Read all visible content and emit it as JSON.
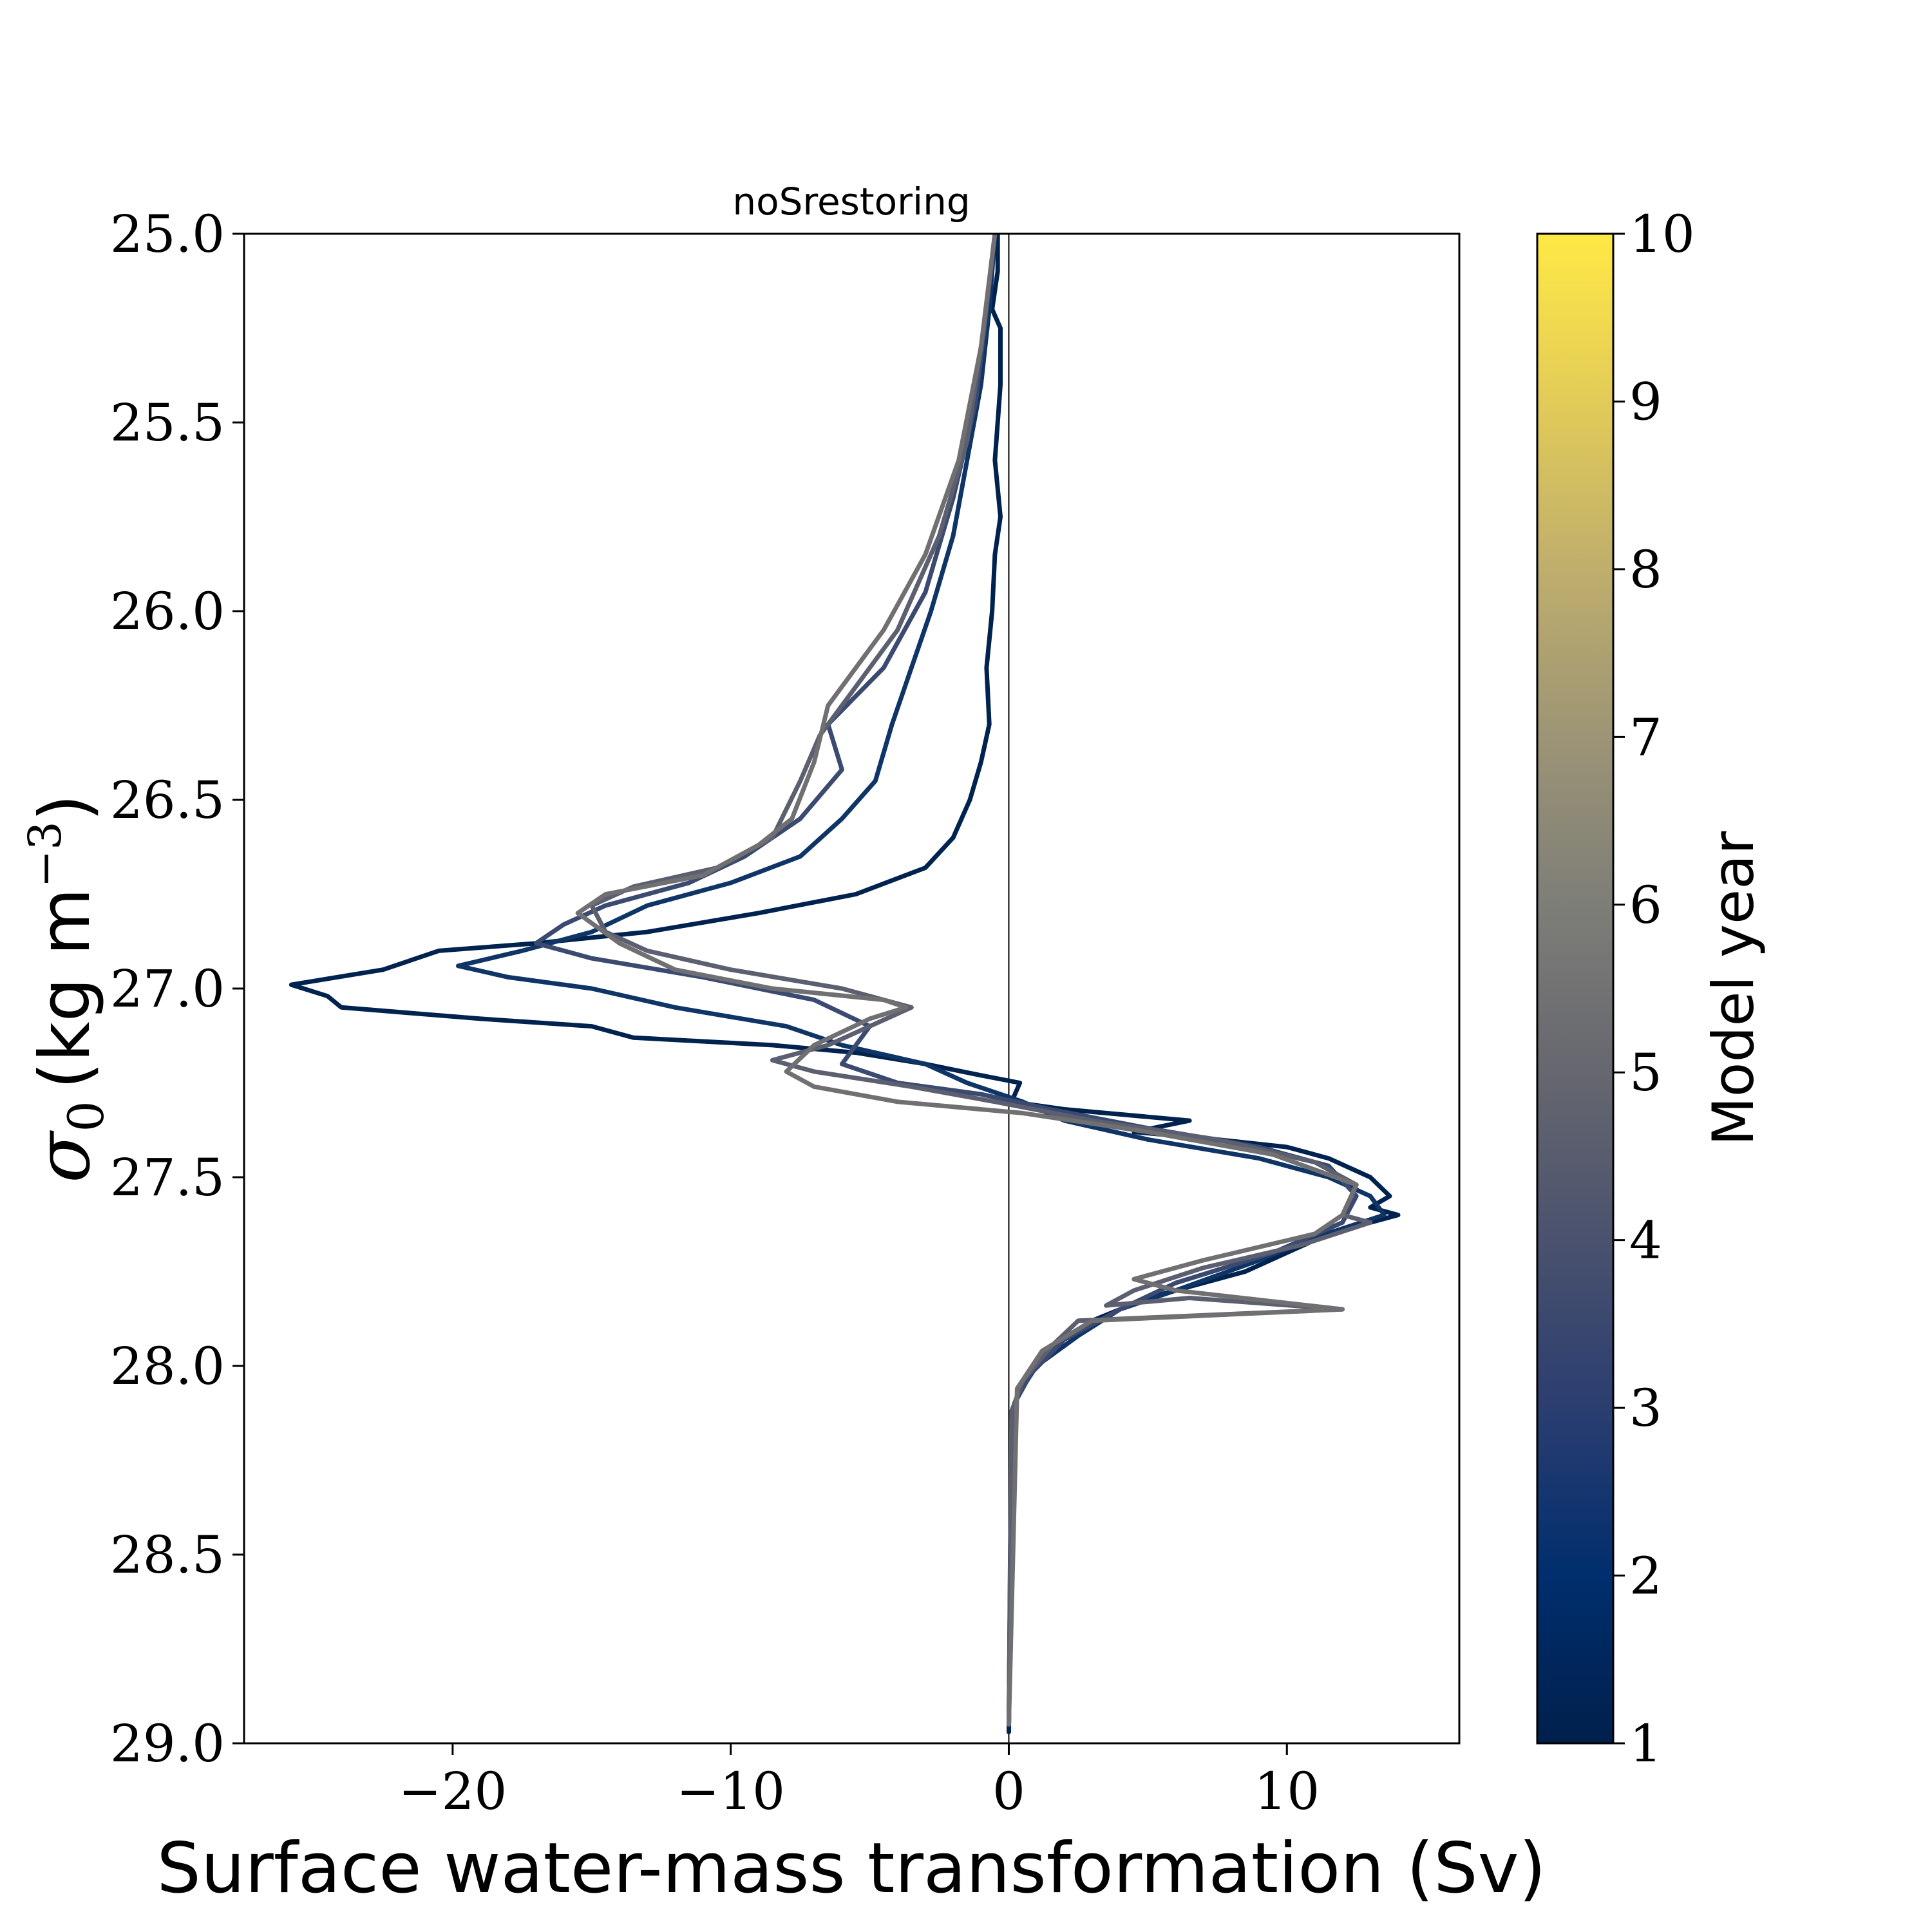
{
  "chart_data": {
    "type": "line",
    "title": "noSrestoring",
    "xlabel": "Surface water-mass transformation (Sv)",
    "ylabel_symbol": "σ",
    "ylabel_subscript": "0",
    "ylabel_units": "(kg m",
    "ylabel_exponent": "−3",
    "ylabel_close": ")",
    "xlim": [
      -27.5,
      16.2
    ],
    "ylim": [
      29.0,
      25.0
    ],
    "y_inverted": true,
    "x_ticks": [
      -20,
      -10,
      0,
      10
    ],
    "x_tick_labels": [
      "−20",
      "−10",
      "0",
      "10"
    ],
    "y_ticks": [
      25.0,
      25.5,
      26.0,
      26.5,
      27.0,
      27.5,
      28.0,
      28.5,
      29.0
    ],
    "y_tick_labels": [
      "25.0",
      "25.5",
      "26.0",
      "26.5",
      "27.0",
      "27.5",
      "28.0",
      "28.5",
      "29.0"
    ],
    "zero_line": true,
    "grid": false,
    "colorbar": {
      "label": "Model year",
      "min": 1,
      "max": 10,
      "ticks": [
        1,
        2,
        3,
        4,
        5,
        6,
        7,
        8,
        9,
        10
      ],
      "tick_labels": [
        "1",
        "2",
        "3",
        "4",
        "5",
        "6",
        "7",
        "8",
        "9",
        "10"
      ],
      "colormap": "cividis",
      "stops": [
        "#00204c",
        "#002e6e",
        "#2b3e70",
        "#4a526e",
        "#66676f",
        "#7e7e78",
        "#9c9475",
        "#bfae6c",
        "#e2cb58",
        "#ffe945"
      ]
    },
    "series": [
      {
        "year": 1,
        "color": "#00224e",
        "points": [
          [
            -0.4,
            25.0
          ],
          [
            -0.4,
            25.1
          ],
          [
            -0.6,
            25.2
          ],
          [
            -0.3,
            25.25
          ],
          [
            -0.3,
            25.4
          ],
          [
            -0.5,
            25.6
          ],
          [
            -0.3,
            25.75
          ],
          [
            -0.5,
            25.85
          ],
          [
            -0.6,
            26.0
          ],
          [
            -0.8,
            26.15
          ],
          [
            -0.7,
            26.3
          ],
          [
            -1.0,
            26.4
          ],
          [
            -1.4,
            26.5
          ],
          [
            -2.0,
            26.6
          ],
          [
            -3.0,
            26.68
          ],
          [
            -5.5,
            26.75
          ],
          [
            -9.0,
            26.8
          ],
          [
            -13.0,
            26.85
          ],
          [
            -17.0,
            26.88
          ],
          [
            -20.5,
            26.9
          ],
          [
            -22.5,
            26.95
          ],
          [
            -25.8,
            26.99
          ],
          [
            -24.5,
            27.02
          ],
          [
            -24.0,
            27.05
          ],
          [
            -19.0,
            27.08
          ],
          [
            -15.0,
            27.1
          ],
          [
            -13.5,
            27.13
          ],
          [
            -8.5,
            27.15
          ],
          [
            -5.5,
            27.17
          ],
          [
            -3.0,
            27.2
          ],
          [
            -1.0,
            27.23
          ],
          [
            0.4,
            27.25
          ],
          [
            0.1,
            27.3
          ],
          [
            2.0,
            27.32
          ],
          [
            6.5,
            27.35
          ],
          [
            4.5,
            27.38
          ],
          [
            7.5,
            27.4
          ],
          [
            10.0,
            27.42
          ],
          [
            11.5,
            27.45
          ],
          [
            13.0,
            27.5
          ],
          [
            13.7,
            27.55
          ],
          [
            13.0,
            27.58
          ],
          [
            14.0,
            27.6
          ],
          [
            11.5,
            27.65
          ],
          [
            10.0,
            27.7
          ],
          [
            8.5,
            27.75
          ],
          [
            5.0,
            27.82
          ],
          [
            3.0,
            27.88
          ],
          [
            1.5,
            27.95
          ],
          [
            0.6,
            28.03
          ],
          [
            0.2,
            28.1
          ],
          [
            0.1,
            28.2
          ],
          [
            0.05,
            28.5
          ],
          [
            0.0,
            28.97
          ]
        ]
      },
      {
        "year": 2,
        "color": "#0f3466",
        "points": [
          [
            -0.5,
            25.0
          ],
          [
            -0.7,
            25.2
          ],
          [
            -1.0,
            25.4
          ],
          [
            -1.5,
            25.6
          ],
          [
            -2.0,
            25.8
          ],
          [
            -2.8,
            26.0
          ],
          [
            -3.5,
            26.15
          ],
          [
            -4.2,
            26.3
          ],
          [
            -4.8,
            26.45
          ],
          [
            -6.0,
            26.55
          ],
          [
            -7.5,
            26.65
          ],
          [
            -10.0,
            26.72
          ],
          [
            -13.0,
            26.78
          ],
          [
            -15.0,
            26.85
          ],
          [
            -17.5,
            26.9
          ],
          [
            -19.8,
            26.94
          ],
          [
            -18.0,
            26.97
          ],
          [
            -15.0,
            27.0
          ],
          [
            -12.0,
            27.05
          ],
          [
            -8.0,
            27.1
          ],
          [
            -6.0,
            27.15
          ],
          [
            -3.0,
            27.2
          ],
          [
            -1.5,
            27.25
          ],
          [
            0.5,
            27.3
          ],
          [
            2.0,
            27.35
          ],
          [
            5.0,
            27.4
          ],
          [
            9.0,
            27.45
          ],
          [
            11.5,
            27.5
          ],
          [
            13.0,
            27.55
          ],
          [
            13.5,
            27.6
          ],
          [
            11.0,
            27.66
          ],
          [
            9.0,
            27.72
          ],
          [
            6.0,
            27.8
          ],
          [
            4.0,
            27.85
          ],
          [
            2.5,
            27.92
          ],
          [
            1.0,
            28.0
          ],
          [
            0.3,
            28.08
          ],
          [
            0.1,
            28.2
          ],
          [
            0.0,
            28.95
          ]
        ]
      },
      {
        "year": 3,
        "color": "#3a4a70",
        "points": [
          [
            -0.5,
            25.0
          ],
          [
            -0.8,
            25.2
          ],
          [
            -1.2,
            25.45
          ],
          [
            -2.0,
            25.7
          ],
          [
            -3.0,
            25.95
          ],
          [
            -4.5,
            26.15
          ],
          [
            -6.5,
            26.3
          ],
          [
            -6.0,
            26.42
          ],
          [
            -7.5,
            26.55
          ],
          [
            -9.5,
            26.65
          ],
          [
            -11.5,
            26.72
          ],
          [
            -14.5,
            26.78
          ],
          [
            -16.0,
            26.83
          ],
          [
            -17.0,
            26.88
          ],
          [
            -15.0,
            26.92
          ],
          [
            -11.0,
            26.97
          ],
          [
            -7.0,
            27.03
          ],
          [
            -5.0,
            27.1
          ],
          [
            -5.5,
            27.15
          ],
          [
            -6.0,
            27.2
          ],
          [
            -4.0,
            27.25
          ],
          [
            -1.0,
            27.28
          ],
          [
            1.5,
            27.32
          ],
          [
            5.0,
            27.37
          ],
          [
            9.0,
            27.42
          ],
          [
            11.5,
            27.47
          ],
          [
            12.5,
            27.55
          ],
          [
            12.0,
            27.62
          ],
          [
            9.5,
            27.7
          ],
          [
            6.0,
            27.78
          ],
          [
            4.0,
            27.85
          ],
          [
            2.0,
            27.93
          ],
          [
            0.8,
            28.02
          ],
          [
            0.2,
            28.1
          ],
          [
            0.0,
            28.95
          ]
        ]
      },
      {
        "year": 4,
        "color": "#5c5f70",
        "points": [
          [
            -0.5,
            25.0
          ],
          [
            -0.9,
            25.25
          ],
          [
            -1.5,
            25.55
          ],
          [
            -2.5,
            25.8
          ],
          [
            -4.0,
            26.05
          ],
          [
            -5.5,
            26.2
          ],
          [
            -6.8,
            26.33
          ],
          [
            -7.5,
            26.45
          ],
          [
            -8.5,
            26.6
          ],
          [
            -10.5,
            26.68
          ],
          [
            -13.5,
            26.73
          ],
          [
            -15.0,
            26.78
          ],
          [
            -14.5,
            26.85
          ],
          [
            -13.0,
            26.9
          ],
          [
            -10.0,
            26.95
          ],
          [
            -6.0,
            27.0
          ],
          [
            -3.5,
            27.05
          ],
          [
            -5.0,
            27.1
          ],
          [
            -6.5,
            27.15
          ],
          [
            -8.5,
            27.19
          ],
          [
            -7.0,
            27.22
          ],
          [
            -3.5,
            27.26
          ],
          [
            -0.5,
            27.3
          ],
          [
            3.0,
            27.35
          ],
          [
            7.5,
            27.4
          ],
          [
            11.0,
            27.46
          ],
          [
            12.5,
            27.52
          ],
          [
            12.0,
            27.6
          ],
          [
            13.0,
            27.62
          ],
          [
            10.5,
            27.68
          ],
          [
            7.0,
            27.74
          ],
          [
            4.5,
            27.8
          ],
          [
            3.5,
            27.84
          ],
          [
            6.5,
            27.82
          ],
          [
            12.0,
            27.85
          ],
          [
            2.5,
            27.88
          ],
          [
            1.5,
            27.95
          ],
          [
            0.5,
            28.04
          ],
          [
            0.1,
            28.12
          ],
          [
            0.0,
            28.95
          ]
        ]
      },
      {
        "year": 5,
        "color": "#707073",
        "points": [
          [
            -0.5,
            25.0
          ],
          [
            -1.0,
            25.3
          ],
          [
            -1.8,
            25.6
          ],
          [
            -3.0,
            25.85
          ],
          [
            -4.5,
            26.05
          ],
          [
            -6.5,
            26.25
          ],
          [
            -7.0,
            26.4
          ],
          [
            -7.8,
            26.55
          ],
          [
            -9.0,
            26.62
          ],
          [
            -11.0,
            26.7
          ],
          [
            -14.5,
            26.75
          ],
          [
            -15.5,
            26.8
          ],
          [
            -14.0,
            26.88
          ],
          [
            -12.0,
            26.95
          ],
          [
            -8.5,
            27.0
          ],
          [
            -4.5,
            27.03
          ],
          [
            -3.7,
            27.05
          ],
          [
            -5.0,
            27.08
          ],
          [
            -7.0,
            27.15
          ],
          [
            -8.0,
            27.22
          ],
          [
            -7.0,
            27.26
          ],
          [
            -4.0,
            27.3
          ],
          [
            0.5,
            27.33
          ],
          [
            5.0,
            27.38
          ],
          [
            9.5,
            27.44
          ],
          [
            12.5,
            27.52
          ],
          [
            12.0,
            27.6
          ],
          [
            11.0,
            27.65
          ],
          [
            7.0,
            27.72
          ],
          [
            4.5,
            27.77
          ],
          [
            6.0,
            27.8
          ],
          [
            12.0,
            27.85
          ],
          [
            3.0,
            27.88
          ],
          [
            1.2,
            27.96
          ],
          [
            0.3,
            28.06
          ],
          [
            0.0,
            28.95
          ]
        ]
      }
    ]
  }
}
